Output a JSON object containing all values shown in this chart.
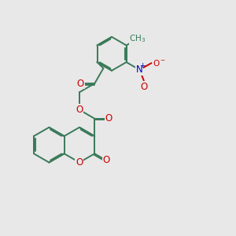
{
  "bg_color": "#e8e8e8",
  "bond_color": "#3a7a5a",
  "bond_width": 1.4,
  "dbo": 0.05,
  "O_color": "#cc0000",
  "N_color": "#0000bb",
  "font_size": 8.5,
  "font_size_small": 7.5,
  "xlim": [
    0,
    10
  ],
  "ylim": [
    0,
    10
  ]
}
